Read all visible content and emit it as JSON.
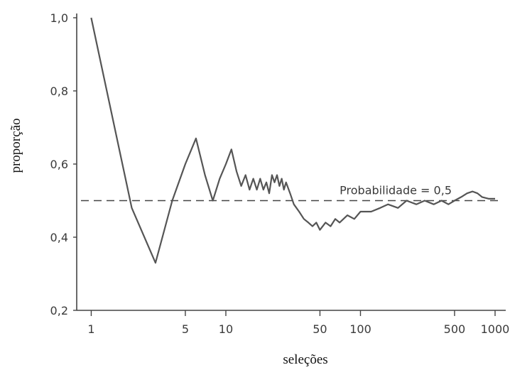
{
  "chart_data": {
    "type": "line",
    "title": "",
    "xlabel": "seleções",
    "ylabel": "proporção",
    "x_scale": "log",
    "xlim": [
      0.78,
      1200
    ],
    "ylim": [
      0.2,
      1.0
    ],
    "x_ticks": [
      {
        "value": 1,
        "label": "1"
      },
      {
        "value": 5,
        "label": "5"
      },
      {
        "value": 10,
        "label": "10"
      },
      {
        "value": 50,
        "label": "50"
      },
      {
        "value": 100,
        "label": "100"
      },
      {
        "value": 500,
        "label": "500"
      },
      {
        "value": 1000,
        "label": "1000"
      }
    ],
    "y_ticks": [
      {
        "value": 0.2,
        "label": "0,2"
      },
      {
        "value": 0.4,
        "label": "0,4"
      },
      {
        "value": 0.6,
        "label": "0,6"
      },
      {
        "value": 0.8,
        "label": "0,8"
      },
      {
        "value": 1.0,
        "label": "1,0"
      }
    ],
    "grid": false,
    "reference_line": {
      "y": 0.5,
      "label": "Probabilidade = 0,5",
      "style": "dashed"
    },
    "series": [
      {
        "color": "#555555",
        "points": [
          [
            1,
            1.0
          ],
          [
            2,
            0.48
          ],
          [
            3,
            0.33
          ],
          [
            4,
            0.5
          ],
          [
            5,
            0.6
          ],
          [
            6,
            0.67
          ],
          [
            7,
            0.57
          ],
          [
            8,
            0.5
          ],
          [
            9,
            0.56
          ],
          [
            10,
            0.6
          ],
          [
            11,
            0.64
          ],
          [
            12,
            0.58
          ],
          [
            13,
            0.54
          ],
          [
            14,
            0.57
          ],
          [
            15,
            0.53
          ],
          [
            16,
            0.56
          ],
          [
            17,
            0.53
          ],
          [
            18,
            0.56
          ],
          [
            19,
            0.53
          ],
          [
            20,
            0.55
          ],
          [
            21,
            0.52
          ],
          [
            22,
            0.57
          ],
          [
            23,
            0.55
          ],
          [
            24,
            0.57
          ],
          [
            25,
            0.54
          ],
          [
            26,
            0.56
          ],
          [
            27,
            0.53
          ],
          [
            28,
            0.55
          ],
          [
            30,
            0.52
          ],
          [
            32,
            0.49
          ],
          [
            35,
            0.47
          ],
          [
            38,
            0.45
          ],
          [
            41,
            0.44
          ],
          [
            44,
            0.43
          ],
          [
            47,
            0.44
          ],
          [
            50,
            0.42
          ],
          [
            55,
            0.44
          ],
          [
            60,
            0.43
          ],
          [
            65,
            0.45
          ],
          [
            70,
            0.44
          ],
          [
            80,
            0.46
          ],
          [
            90,
            0.45
          ],
          [
            100,
            0.47
          ],
          [
            120,
            0.47
          ],
          [
            140,
            0.48
          ],
          [
            160,
            0.49
          ],
          [
            190,
            0.48
          ],
          [
            220,
            0.5
          ],
          [
            260,
            0.49
          ],
          [
            300,
            0.5
          ],
          [
            350,
            0.49
          ],
          [
            400,
            0.5
          ],
          [
            450,
            0.49
          ],
          [
            500,
            0.5
          ],
          [
            560,
            0.51
          ],
          [
            620,
            0.52
          ],
          [
            680,
            0.525
          ],
          [
            740,
            0.52
          ],
          [
            800,
            0.51
          ],
          [
            900,
            0.505
          ],
          [
            1000,
            0.505
          ]
        ]
      }
    ]
  }
}
